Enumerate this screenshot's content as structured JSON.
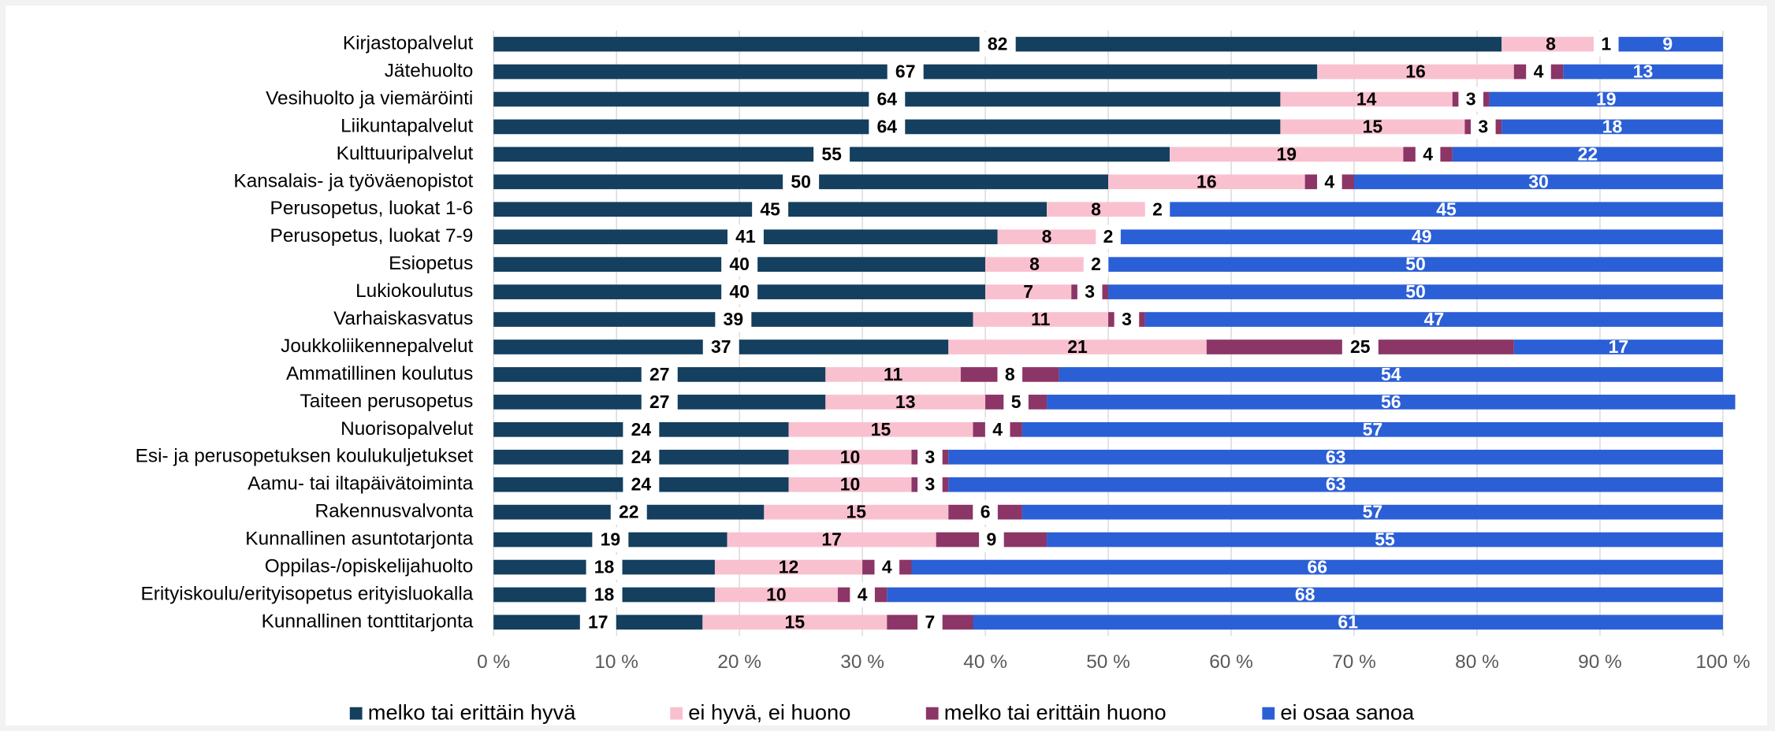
{
  "chart_data": {
    "type": "stacked-barh",
    "categories": [
      "Kirjastopalvelut",
      "Jätehuolto",
      "Vesihuolto ja viemäröinti",
      "Liikuntapalvelut",
      "Kulttuuripalvelut",
      "Kansalais- ja työväenopistot",
      "Perusopetus, luokat 1-6",
      "Perusopetus, luokat 7-9",
      "Esiopetus",
      "Lukiokoulutus",
      "Varhaiskasvatus",
      "Joukkoliikennepalvelut",
      "Ammatillinen koulutus",
      "Taiteen perusopetus",
      "Nuorisopalvelut",
      "Esi- ja perusopetuksen koulukuljetukset",
      "Aamu- tai iltapäivätoiminta",
      "Rakennusvalvonta",
      "Kunnallinen asuntotarjonta",
      "Oppilas-/opiskelijahuolto",
      "Erityiskoulu/erityisopetus erityisluokalla",
      "Kunnallinen tonttitarjonta"
    ],
    "series": [
      {
        "name": "melko tai erittäin hyvä",
        "color": "#143f5e",
        "values": [
          82,
          67,
          64,
          64,
          55,
          50,
          45,
          41,
          40,
          40,
          39,
          37,
          27,
          27,
          24,
          24,
          24,
          22,
          19,
          18,
          18,
          17
        ]
      },
      {
        "name": "ei hyvä, ei huono",
        "color": "#f9c1d0",
        "values": [
          8,
          16,
          14,
          15,
          19,
          16,
          8,
          8,
          8,
          7,
          11,
          21,
          11,
          13,
          15,
          10,
          10,
          15,
          17,
          12,
          10,
          15
        ]
      },
      {
        "name": "melko tai erittäin huono",
        "color": "#8c3567",
        "values": [
          1,
          4,
          3,
          3,
          4,
          4,
          2,
          2,
          2,
          3,
          3,
          25,
          8,
          5,
          4,
          3,
          3,
          6,
          9,
          4,
          4,
          7
        ]
      },
      {
        "name": "ei osaa sanoa",
        "color": "#2b5fd6",
        "values": [
          9,
          13,
          19,
          18,
          22,
          30,
          45,
          49,
          50,
          50,
          47,
          17,
          54,
          56,
          57,
          63,
          63,
          57,
          55,
          66,
          68,
          61
        ]
      }
    ],
    "xlim": [
      0,
      100
    ],
    "xticks": [
      {
        "value": 0,
        "label": "0 %"
      },
      {
        "value": 10,
        "label": "10 %"
      },
      {
        "value": 20,
        "label": "20 %"
      },
      {
        "value": 30,
        "label": "30 %"
      },
      {
        "value": 40,
        "label": "40 %"
      },
      {
        "value": 50,
        "label": "50 %"
      },
      {
        "value": 60,
        "label": "60 %"
      },
      {
        "value": 70,
        "label": "70 %"
      },
      {
        "value": 80,
        "label": "80 %"
      },
      {
        "value": 90,
        "label": "90 %"
      },
      {
        "value": 100,
        "label": "100 %"
      }
    ],
    "grid": true,
    "legend": "bottom"
  }
}
